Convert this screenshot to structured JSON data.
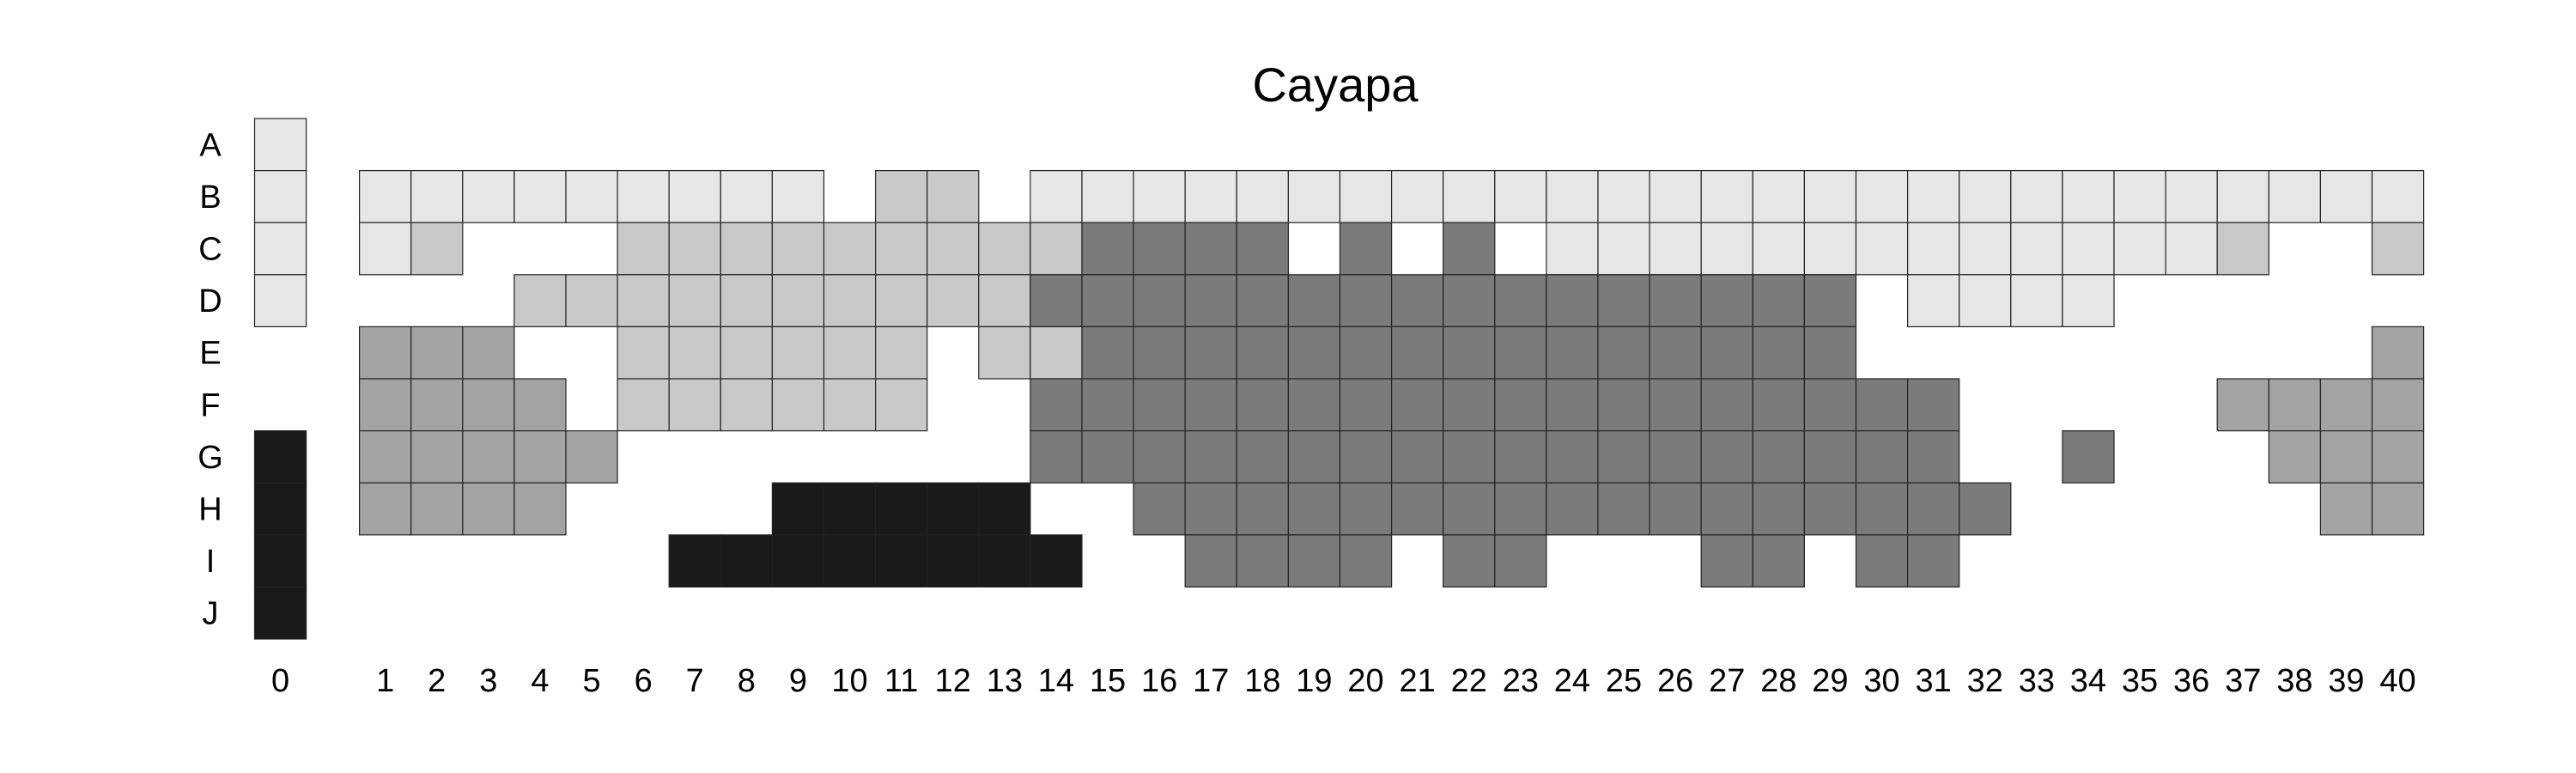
{
  "chart_data": {
    "type": "heatmap",
    "title": "Cayapa",
    "xlabel": "",
    "ylabel": "",
    "rows": [
      "A",
      "B",
      "C",
      "D",
      "E",
      "F",
      "G",
      "H",
      "I",
      "J"
    ],
    "columns": [
      "0",
      "1",
      "2",
      "3",
      "4",
      "5",
      "6",
      "7",
      "8",
      "9",
      "10",
      "11",
      "12",
      "13",
      "14",
      "15",
      "16",
      "17",
      "18",
      "19",
      "20",
      "21",
      "22",
      "23",
      "24",
      "25",
      "26",
      "27",
      "28",
      "29",
      "30",
      "31",
      "32",
      "33",
      "34",
      "35",
      "36",
      "37",
      "38",
      "39",
      "40"
    ],
    "legend": "none",
    "grid": false,
    "categories": {
      "1": {
        "color": "#e6e6e6"
      },
      "2": {
        "color": "#c8c8c8"
      },
      "3": {
        "color": "#a3a3a3"
      },
      "4": {
        "color": "#7b7b7b"
      },
      "5": {
        "color": "#1a1a1a"
      }
    },
    "values": [
      [
        1,
        0,
        0,
        0,
        0,
        0,
        0,
        0,
        0,
        0,
        0,
        0,
        0,
        0,
        0,
        0,
        0,
        0,
        0,
        0,
        0,
        0,
        0,
        0,
        0,
        0,
        0,
        0,
        0,
        0,
        0,
        0,
        0,
        0,
        0,
        0,
        0,
        0,
        0,
        0,
        0
      ],
      [
        1,
        1,
        1,
        1,
        1,
        1,
        1,
        1,
        1,
        1,
        0,
        2,
        2,
        0,
        1,
        1,
        1,
        1,
        1,
        1,
        1,
        1,
        1,
        1,
        1,
        1,
        1,
        1,
        1,
        1,
        1,
        1,
        1,
        1,
        1,
        1,
        1,
        1,
        1,
        1,
        1
      ],
      [
        1,
        1,
        2,
        0,
        0,
        0,
        2,
        2,
        2,
        2,
        2,
        2,
        2,
        2,
        2,
        4,
        4,
        4,
        4,
        0,
        4,
        0,
        4,
        0,
        1,
        1,
        1,
        1,
        1,
        1,
        1,
        1,
        1,
        1,
        1,
        1,
        1,
        2,
        0,
        0,
        2
      ],
      [
        1,
        0,
        0,
        0,
        2,
        2,
        2,
        2,
        2,
        2,
        2,
        2,
        2,
        2,
        4,
        4,
        4,
        4,
        4,
        4,
        4,
        4,
        4,
        4,
        4,
        4,
        4,
        4,
        4,
        4,
        0,
        1,
        1,
        1,
        1,
        0,
        0,
        0,
        0,
        0,
        0
      ],
      [
        0,
        3,
        3,
        3,
        0,
        0,
        2,
        2,
        2,
        2,
        2,
        2,
        0,
        2,
        2,
        4,
        4,
        4,
        4,
        4,
        4,
        4,
        4,
        4,
        4,
        4,
        4,
        4,
        4,
        4,
        0,
        0,
        0,
        0,
        0,
        0,
        0,
        0,
        0,
        0,
        3
      ],
      [
        0,
        3,
        3,
        3,
        3,
        0,
        2,
        2,
        2,
        2,
        2,
        2,
        0,
        0,
        4,
        4,
        4,
        4,
        4,
        4,
        4,
        4,
        4,
        4,
        4,
        4,
        4,
        4,
        4,
        4,
        4,
        4,
        0,
        0,
        0,
        0,
        0,
        3,
        3,
        3,
        3
      ],
      [
        5,
        3,
        3,
        3,
        3,
        3,
        0,
        0,
        0,
        0,
        0,
        0,
        0,
        0,
        4,
        4,
        4,
        4,
        4,
        4,
        4,
        4,
        4,
        4,
        4,
        4,
        4,
        4,
        4,
        4,
        4,
        4,
        0,
        0,
        4,
        0,
        0,
        0,
        3,
        3,
        3
      ],
      [
        5,
        3,
        3,
        3,
        3,
        0,
        0,
        0,
        0,
        5,
        5,
        5,
        5,
        5,
        0,
        0,
        4,
        4,
        4,
        4,
        4,
        4,
        4,
        4,
        4,
        4,
        4,
        4,
        4,
        4,
        4,
        4,
        4,
        0,
        0,
        0,
        0,
        0,
        0,
        3,
        3
      ],
      [
        5,
        0,
        0,
        0,
        0,
        0,
        0,
        5,
        5,
        5,
        5,
        5,
        5,
        5,
        5,
        0,
        0,
        4,
        4,
        4,
        4,
        0,
        4,
        4,
        0,
        0,
        0,
        4,
        4,
        0,
        4,
        4,
        0,
        0,
        0,
        0,
        0,
        0,
        0,
        0,
        0
      ],
      [
        5,
        0,
        0,
        0,
        0,
        0,
        0,
        0,
        0,
        0,
        0,
        0,
        0,
        0,
        0,
        0,
        0,
        0,
        0,
        0,
        0,
        0,
        0,
        0,
        0,
        0,
        0,
        0,
        0,
        0,
        0,
        0,
        0,
        0,
        0,
        0,
        0,
        0,
        0,
        0,
        0
      ]
    ]
  }
}
